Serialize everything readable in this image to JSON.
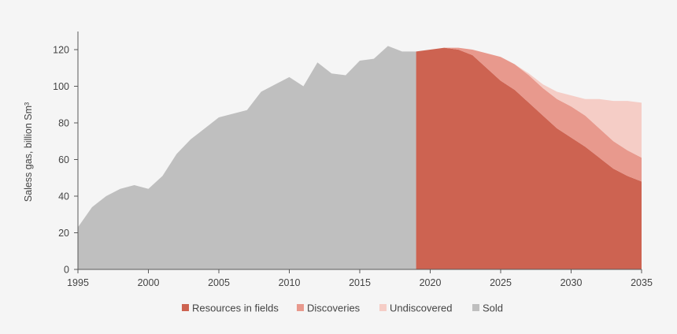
{
  "chart_data": {
    "type": "area",
    "title": "",
    "xlabel": "",
    "ylabel": "Saless gas, billion Sm³",
    "xlim": [
      1995,
      2035
    ],
    "ylim": [
      0,
      130
    ],
    "x_ticks": [
      1995,
      2000,
      2005,
      2010,
      2015,
      2020,
      2025,
      2030,
      2035
    ],
    "y_ticks": [
      0,
      20,
      40,
      60,
      80,
      100,
      120
    ],
    "grid": false,
    "legend_position": "bottom",
    "series": [
      {
        "name": "Resources in fields",
        "color": "#cd6351",
        "x": [
          2019,
          2020,
          2021,
          2022,
          2023,
          2024,
          2025,
          2026,
          2027,
          2028,
          2029,
          2030,
          2031,
          2032,
          2033,
          2034,
          2035
        ],
        "values": [
          119,
          120,
          121,
          120,
          117,
          110,
          103,
          98,
          91,
          84,
          77,
          72,
          67,
          61,
          55,
          51,
          48
        ]
      },
      {
        "name": "Discoveries",
        "color": "#e8998d",
        "x": [
          2019,
          2020,
          2021,
          2022,
          2023,
          2024,
          2025,
          2026,
          2027,
          2028,
          2029,
          2030,
          2031,
          2032,
          2033,
          2034,
          2035
        ],
        "values": [
          0,
          0,
          0,
          1,
          3,
          8,
          13,
          14,
          15,
          15,
          16,
          17,
          17,
          16,
          15,
          14,
          13
        ]
      },
      {
        "name": "Undiscovered",
        "color": "#f5cdc6",
        "x": [
          2019,
          2020,
          2021,
          2022,
          2023,
          2024,
          2025,
          2026,
          2027,
          2028,
          2029,
          2030,
          2031,
          2032,
          2033,
          2034,
          2035
        ],
        "values": [
          0,
          0,
          0,
          0,
          0,
          0,
          0,
          0,
          1,
          2,
          4,
          6,
          9,
          16,
          22,
          27,
          30
        ]
      },
      {
        "name": "Sold",
        "color": "#bfbfbf",
        "x": [
          1995,
          1996,
          1997,
          1998,
          1999,
          2000,
          2001,
          2002,
          2003,
          2004,
          2005,
          2006,
          2007,
          2008,
          2009,
          2010,
          2011,
          2012,
          2013,
          2014,
          2015,
          2016,
          2017,
          2018,
          2019
        ],
        "values": [
          23,
          34,
          40,
          44,
          46,
          44,
          51,
          63,
          71,
          77,
          83,
          85,
          87,
          97,
          101,
          105,
          100,
          113,
          107,
          106,
          114,
          115,
          122,
          119,
          119
        ]
      }
    ],
    "legend": [
      {
        "label": "Resources in fields",
        "color": "#cd6351"
      },
      {
        "label": "Discoveries",
        "color": "#e8998d"
      },
      {
        "label": "Undiscovered",
        "color": "#f5cdc6"
      },
      {
        "label": "Sold",
        "color": "#bfbfbf"
      }
    ]
  }
}
